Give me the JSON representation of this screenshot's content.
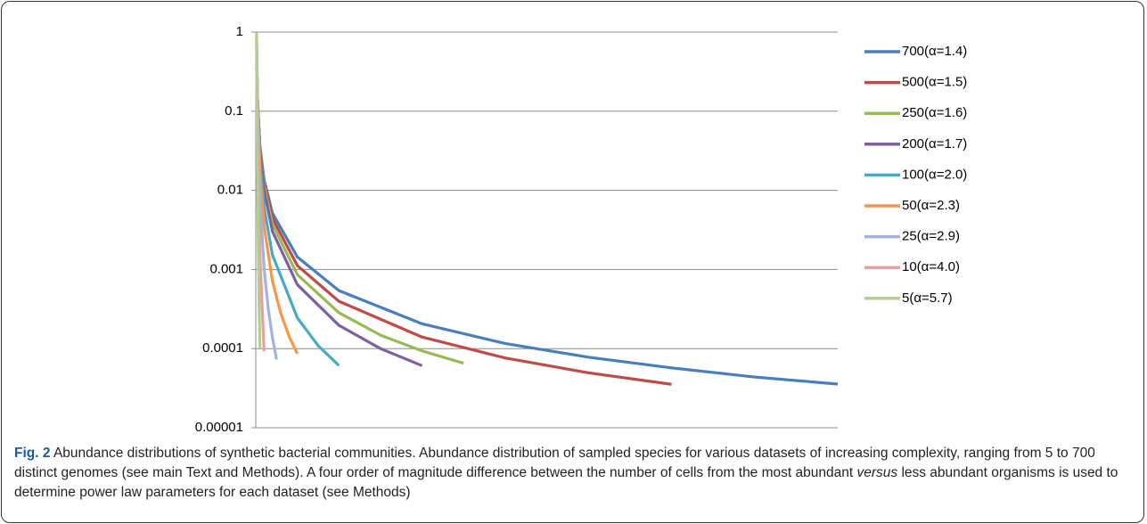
{
  "chart_data": {
    "type": "line",
    "log_y": true,
    "grid": true,
    "xlim": [
      0,
      700
    ],
    "ylim": [
      1e-05,
      1
    ],
    "yticks": [
      1,
      0.1,
      0.01,
      0.001,
      0.0001,
      1e-05
    ],
    "series": [
      {
        "name": "700(α=1.4)",
        "color": "#4a7ebb",
        "x": [
          1,
          2,
          5,
          10,
          20,
          50,
          100,
          200,
          300,
          400,
          500,
          600,
          700
        ],
        "values": [
          0.342,
          0.13,
          0.0359,
          0.0136,
          0.00516,
          0.00144,
          0.000541,
          0.000206,
          0.000116,
          7.8e-05,
          5.71e-05,
          4.38e-05,
          3.56e-05
        ]
      },
      {
        "name": "500(α=1.5)",
        "color": "#be4b48",
        "x": [
          1,
          2,
          5,
          10,
          20,
          50,
          100,
          200,
          300,
          400,
          500
        ],
        "values": [
          0.396,
          0.14,
          0.0354,
          0.0125,
          0.00443,
          0.00112,
          0.000396,
          0.00014,
          7.62e-05,
          4.95e-05,
          3.54e-05
        ]
      },
      {
        "name": "250(α=1.6)",
        "color": "#98b954",
        "x": [
          1,
          2,
          5,
          10,
          20,
          50,
          100,
          150,
          200,
          250
        ],
        "values": [
          0.45,
          0.148,
          0.0342,
          0.0113,
          0.00373,
          0.00086,
          0.000284,
          0.000148,
          9.36e-05,
          6.53e-05
        ]
      },
      {
        "name": "200(α=1.7)",
        "color": "#7d60a0",
        "x": [
          1,
          2,
          5,
          10,
          20,
          50,
          100,
          150,
          200
        ],
        "values": [
          0.495,
          0.152,
          0.0321,
          0.0099,
          0.00304,
          0.000643,
          0.000197,
          0.0001,
          6.09e-05
        ]
      },
      {
        "name": "100(α=2.0)",
        "color": "#46aac5",
        "x": [
          1,
          2,
          5,
          10,
          20,
          50,
          75,
          100
        ],
        "values": [
          0.612,
          0.153,
          0.0245,
          0.00612,
          0.00153,
          0.000245,
          0.000109,
          6.12e-05
        ]
      },
      {
        "name": "50(α=2.3)",
        "color": "#f79646",
        "x": [
          1,
          2,
          5,
          10,
          20,
          30,
          40,
          50
        ],
        "values": [
          0.701,
          0.142,
          0.0173,
          0.00351,
          0.000715,
          0.00028,
          0.000144,
          8.62e-05
        ]
      },
      {
        "name": "25(α=2.9)",
        "color": "#a0b4dc",
        "x": [
          1,
          2,
          5,
          10,
          15,
          20,
          25
        ],
        "values": [
          0.82,
          0.11,
          0.00771,
          0.00103,
          0.00032,
          0.000139,
          7.28e-05
        ]
      },
      {
        "name": "10(α=4.0)",
        "color": "#e6a09e",
        "x": [
          1,
          2,
          3,
          5,
          10
        ],
        "values": [
          0.924,
          0.0578,
          0.0114,
          0.00148,
          9.24e-05
        ]
      },
      {
        "name": "5(α=5.7)",
        "color": "#b3cf8e",
        "x": [
          1,
          2,
          3,
          4,
          5
        ],
        "values": [
          0.979,
          0.0188,
          0.00187,
          0.000362,
          0.000102
        ]
      }
    ]
  },
  "caption": {
    "label": "Fig. 2",
    "text_before": "Abundance distributions of synthetic bacterial communities. Abundance distribution of sampled species for various datasets of increasing complexity, ranging from 5 to 700 distinct genomes (see main Text and Methods). A four order of magnitude difference between the number of cells from the most abundant",
    "emphasis": "versus",
    "text_after": "less abundant organisms is used to determine power law parameters for each dataset (see Methods)"
  }
}
